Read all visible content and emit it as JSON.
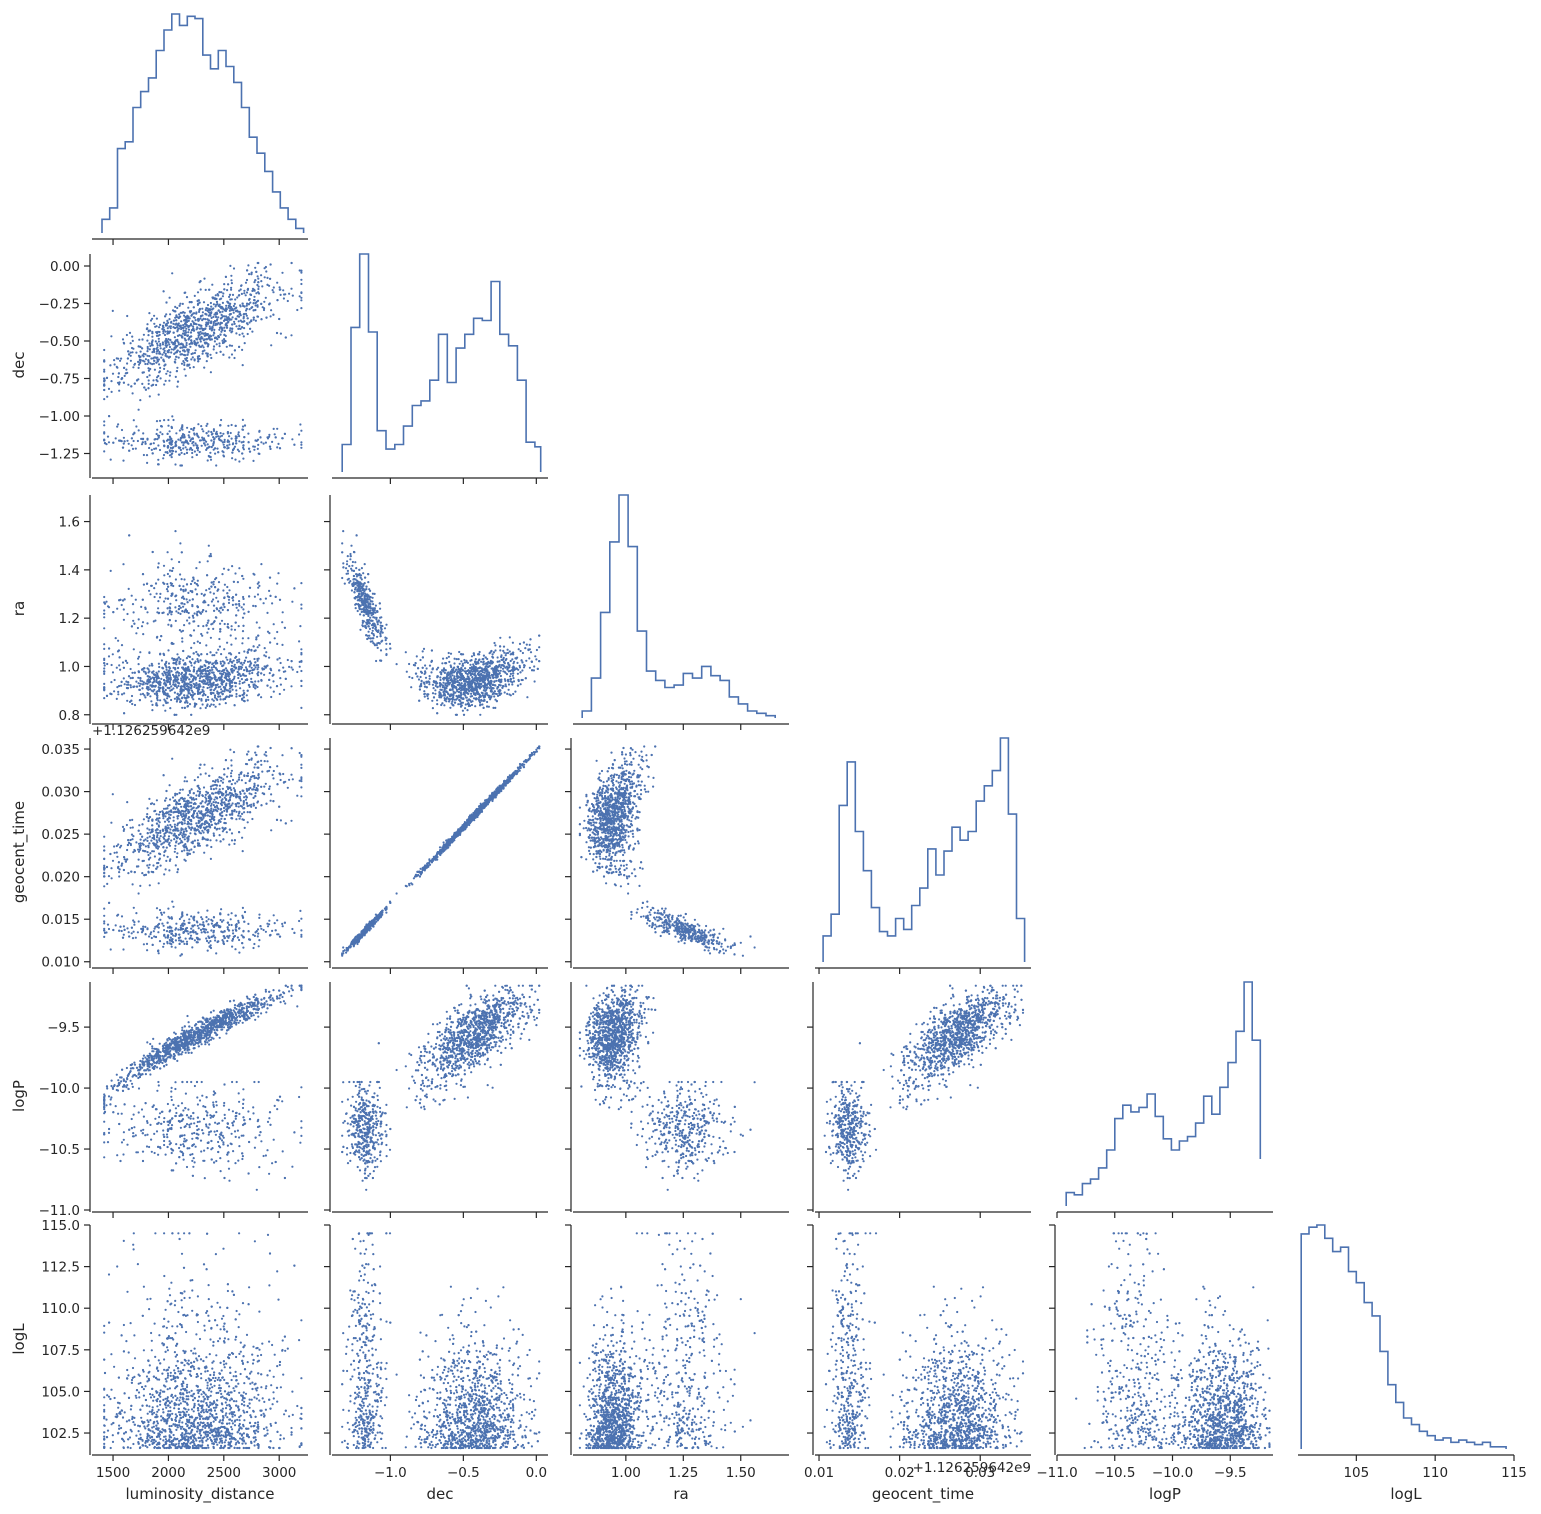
{
  "figure": {
    "type": "corner_plot",
    "color": "#4c72b0",
    "background": "#ffffff",
    "grid": false
  },
  "chart_data": {
    "type": "scatter",
    "variables": [
      "luminosity_distance",
      "dec",
      "ra",
      "geocent_time",
      "logP",
      "logL"
    ],
    "axes": {
      "luminosity_distance": {
        "label": "luminosity_distance",
        "lim": [
          1310,
          3260
        ],
        "ticks": [
          1500,
          2000,
          2500,
          3000
        ],
        "tick_labels": [
          "1500",
          "2000",
          "2500",
          "3000"
        ],
        "offset": ""
      },
      "dec": {
        "label": "dec",
        "lim": [
          -1.4,
          0.08
        ],
        "ticks": [
          -1.25,
          -1.0,
          -0.75,
          -0.5,
          -0.25,
          0.0
        ],
        "tick_labels": [
          "−1.25",
          "−1.00",
          "−0.75",
          "−0.50",
          "−0.25",
          "0.00"
        ],
        "x_ticks": [
          -1.0,
          -0.5,
          0.0
        ],
        "x_tick_labels": [
          "−1.0",
          "−0.5",
          "0.0"
        ],
        "offset": ""
      },
      "ra": {
        "label": "ra",
        "lim": [
          0.77,
          1.71
        ],
        "ticks": [
          0.8,
          1.0,
          1.2,
          1.4,
          1.6
        ],
        "tick_labels": [
          "0.8",
          "1.0",
          "1.2",
          "1.4",
          "1.6"
        ],
        "x_ticks": [
          1.0,
          1.25,
          1.5
        ],
        "x_tick_labels": [
          "1.00",
          "1.25",
          "1.50"
        ],
        "offset": ""
      },
      "geocent_time": {
        "label": "geocent_time",
        "lim": [
          0.0095,
          0.0363
        ],
        "ticks": [
          0.01,
          0.015,
          0.02,
          0.025,
          0.03,
          0.035
        ],
        "tick_labels": [
          "0.010",
          "0.015",
          "0.020",
          "0.025",
          "0.030",
          "0.035"
        ],
        "x_ticks": [
          0.01,
          0.02,
          0.03
        ],
        "x_tick_labels": [
          "0.01",
          "0.02",
          "0.03"
        ],
        "offset": "+1.126259642e9",
        "offset_label_row": "+1.126259642e9",
        "offset_label_x": "+1.126259642e9"
      },
      "logP": {
        "label": "logP",
        "lim": [
          -11.0,
          -9.13
        ],
        "ticks": [
          -11.0,
          -10.5,
          -10.0,
          -9.5
        ],
        "tick_labels": [
          "−11.0",
          "−10.5",
          "−10.0",
          "−9.5"
        ],
        "offset": ""
      },
      "logL": {
        "label": "logL",
        "lim": [
          101.3,
          115.0
        ],
        "ticks": [
          102.5,
          105.0,
          107.5,
          110.0,
          112.5,
          115.0
        ],
        "tick_labels": [
          "102.5",
          "105.0",
          "107.5",
          "110.0",
          "112.5",
          "115.0"
        ],
        "x_ticks": [
          105,
          110,
          115
        ],
        "x_tick_labels": [
          "105",
          "110",
          "115"
        ],
        "offset": ""
      }
    },
    "histograms": {
      "luminosity_distance": {
        "edges": [
          1400,
          1470,
          1540,
          1610,
          1680,
          1750,
          1820,
          1890,
          1960,
          2030,
          2100,
          2170,
          2240,
          2310,
          2380,
          2450,
          2520,
          2590,
          2660,
          2730,
          2800,
          2870,
          2940,
          3010,
          3080,
          3150,
          3220
        ],
        "counts": [
          6,
          11,
          37,
          40,
          55,
          62,
          68,
          80,
          89,
          96,
          91,
          95,
          94,
          78,
          72,
          80,
          73,
          66,
          55,
          42,
          35,
          27,
          18,
          11,
          6,
          2
        ]
      },
      "dec": {
        "edges": [
          -1.33,
          -1.27,
          -1.21,
          -1.15,
          -1.09,
          -1.03,
          -0.97,
          -0.91,
          -0.85,
          -0.79,
          -0.73,
          -0.67,
          -0.61,
          -0.55,
          -0.49,
          -0.43,
          -0.37,
          -0.31,
          -0.25,
          -0.19,
          -0.13,
          -0.07,
          -0.01,
          0.03
        ],
        "counts": [
          12,
          63,
          95,
          61,
          18,
          10,
          12,
          20,
          29,
          31,
          40,
          60,
          39,
          54,
          60,
          67,
          66,
          83,
          60,
          55,
          40,
          13,
          11
        ]
      },
      "ra": {
        "edges": [
          0.81,
          0.85,
          0.89,
          0.93,
          0.97,
          1.01,
          1.05,
          1.09,
          1.13,
          1.17,
          1.21,
          1.25,
          1.29,
          1.33,
          1.37,
          1.41,
          1.45,
          1.49,
          1.53,
          1.57,
          1.61,
          1.65
        ],
        "counts": [
          3,
          17,
          45,
          75,
          95,
          73,
          37,
          20,
          16,
          13,
          14,
          19,
          17,
          22,
          18,
          16,
          9,
          6,
          3,
          2,
          1
        ]
      },
      "geocent_time": {
        "edges": [
          0.0105,
          0.0115,
          0.0125,
          0.0135,
          0.0145,
          0.0155,
          0.0165,
          0.0175,
          0.0185,
          0.0195,
          0.0205,
          0.0215,
          0.0225,
          0.0235,
          0.0245,
          0.0255,
          0.0265,
          0.0275,
          0.0285,
          0.0295,
          0.0305,
          0.0315,
          0.0325,
          0.0335,
          0.0345,
          0.0355
        ],
        "counts": [
          12,
          22,
          72,
          92,
          60,
          42,
          25,
          14,
          12,
          20,
          15,
          26,
          34,
          52,
          40,
          51,
          62,
          56,
          60,
          74,
          81,
          88,
          103,
          68,
          20
        ]
      },
      "logP": {
        "edges": [
          -10.92,
          -10.85,
          -10.78,
          -10.71,
          -10.64,
          -10.57,
          -10.5,
          -10.43,
          -10.36,
          -10.29,
          -10.22,
          -10.15,
          -10.08,
          -10.01,
          -9.94,
          -9.87,
          -9.8,
          -9.73,
          -9.66,
          -9.59,
          -9.52,
          -9.45,
          -9.38,
          -9.31,
          -9.24
        ],
        "counts": [
          6,
          5,
          10,
          12,
          17,
          25,
          39,
          45,
          42,
          44,
          50,
          40,
          30,
          25,
          29,
          31,
          37,
          49,
          41,
          53,
          64,
          78,
          100,
          74,
          21
        ]
      },
      "logL": {
        "edges": [
          101.5,
          102.0,
          102.5,
          103.0,
          103.5,
          104.0,
          104.5,
          105.0,
          105.5,
          106.0,
          106.5,
          107.0,
          107.5,
          108.0,
          108.5,
          109.0,
          109.5,
          110.0,
          110.5,
          111.0,
          111.5,
          112.0,
          112.5,
          113.0,
          113.5,
          114.0,
          114.5
        ],
        "counts": [
          97,
          100,
          101,
          95,
          89,
          91,
          80,
          75,
          66,
          60,
          44,
          29,
          21,
          14,
          11,
          8,
          6,
          4,
          5,
          3,
          4,
          3,
          2,
          3,
          1,
          1
        ]
      }
    },
    "scatter": {
      "points_per_panel": 1800,
      "point_size": "small",
      "structure": {
        "dec_vs_luminosity_distance": "upper band rising from (1450, -0.75) to (3150, -0.15); lower band near -1.15 for 1550-3000",
        "ra_vs_dec": "U shape: 1.5 at dec -1.3, minimum 0.92 at dec -0.55, 1.1 at dec 0.0",
        "geocent_time_vs_dec": "tight monotonic curve from (-1.33, 0.0110) to (0.02, 0.0352)",
        "logP_vs_luminosity_distance": "upper branch rising from (1450, -10.1) to (3200, -9.18); lower cloud near -10.3",
        "logL_vs_parameters": "concentrated near 102-106 with sparse tail up to 114.5"
      }
    }
  }
}
